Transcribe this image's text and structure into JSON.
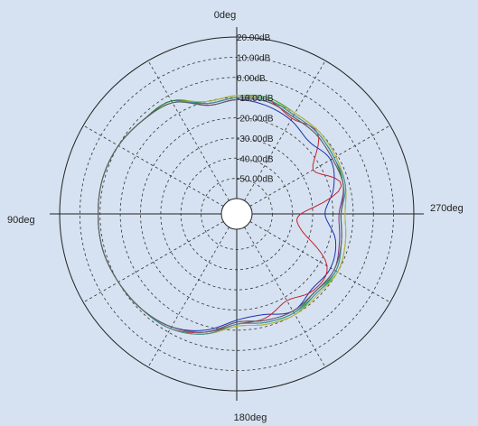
{
  "chart_data": {
    "type": "polar",
    "title": "",
    "angle_labels": {
      "top": "0deg",
      "left": "90deg",
      "bottom": "180deg",
      "right": "270deg"
    },
    "angle_direction": "counterclockwise",
    "radial_unit": "dB",
    "radial_range": [
      -60,
      20
    ],
    "ring_labels": [
      "20.00dB",
      "10.00dB",
      "0.00dB",
      "-10.00dB",
      "-20.00dB",
      "-30.00dB",
      "-40.00dB",
      "-50.00dB"
    ],
    "ring_values": [
      20,
      10,
      0,
      -10,
      -20,
      -30,
      -40,
      -50
    ],
    "grid": true,
    "legend": "none",
    "angles_deg": [
      0,
      15,
      30,
      45,
      60,
      75,
      90,
      105,
      120,
      135,
      150,
      165,
      180,
      195,
      210,
      225,
      240,
      255,
      270,
      285,
      300,
      315,
      330,
      345
    ],
    "series": [
      {
        "color": "#1f2fb0",
        "values": [
          -11,
          -12,
          -3,
          -2,
          0,
          1,
          1,
          1,
          0,
          -1,
          -3,
          -8,
          -15,
          -16,
          -12,
          -15,
          -14,
          -17,
          -24,
          -18,
          -14,
          -17,
          -14,
          -12
        ]
      },
      {
        "color": "#c4222a",
        "values": [
          -10,
          -11,
          -4,
          -2,
          0,
          1,
          1,
          1,
          0,
          -1,
          -2,
          -7,
          -13,
          -14,
          -18,
          -14,
          -16,
          -34,
          -36,
          -14,
          -24,
          -11,
          -13,
          -9
        ]
      },
      {
        "color": "#1f8a2a",
        "values": [
          -10,
          -11,
          -3,
          -2,
          0,
          1,
          1,
          1,
          0,
          -1,
          -2,
          -6,
          -13,
          -12,
          -11,
          -13,
          -11,
          -14,
          -16,
          -13,
          -12,
          -11,
          -11,
          -9
        ]
      },
      {
        "color": "#2aa32a",
        "values": [
          -9,
          -10,
          -4,
          -2,
          0,
          1,
          1,
          1,
          0,
          -1,
          -2,
          -6,
          -12,
          -11,
          -10,
          -12,
          -10,
          -12,
          -14,
          -12,
          -11,
          -10,
          -10,
          -8
        ]
      },
      {
        "color": "#8a2a8a",
        "values": [
          -11,
          -12,
          -4,
          -2,
          0,
          1,
          1,
          1,
          0,
          -1,
          -3,
          -7,
          -14,
          -13,
          -12,
          -13,
          -12,
          -15,
          -17,
          -13,
          -13,
          -12,
          -12,
          -10
        ]
      },
      {
        "color": "#c9b23a",
        "values": [
          -9,
          -10,
          -4,
          -2,
          0,
          1,
          1,
          1,
          0,
          -1,
          -2,
          -6,
          -12,
          -11,
          -10,
          -11,
          -10,
          -12,
          -14,
          -12,
          -11,
          -10,
          -10,
          -9
        ]
      },
      {
        "color": "#3a8fa8",
        "values": [
          -10,
          -11,
          -4,
          -2,
          0,
          1,
          1,
          1,
          0,
          -1,
          -2,
          -6,
          -13,
          -12,
          -11,
          -12,
          -11,
          -14,
          -16,
          -12,
          -12,
          -11,
          -11,
          -9
        ]
      },
      {
        "color": "#606060",
        "values": [
          -11,
          -12,
          -4,
          -2,
          0,
          1,
          1,
          1,
          0,
          -1,
          -3,
          -7,
          -14,
          -13,
          -12,
          -13,
          -12,
          -14,
          -16,
          -13,
          -13,
          -12,
          -12,
          -10
        ]
      }
    ]
  }
}
